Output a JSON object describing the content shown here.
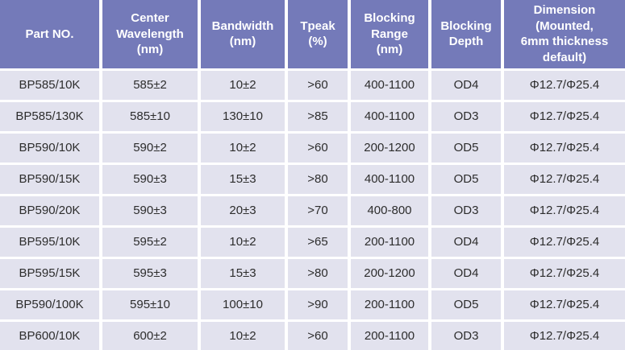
{
  "colors": {
    "header_bg": "#747AB9",
    "header_text": "#FFFFFF",
    "row_bg": "#E2E2EE",
    "grid": "#FFFFFF",
    "cell_text": "#2D2D2D"
  },
  "table": {
    "columns": [
      "Part NO.",
      "Center\nWavelength\n(nm)",
      "Bandwidth\n(nm)",
      "Tpeak\n(%)",
      "Blocking\nRange\n(nm)",
      "Blocking\nDepth",
      "Dimension\n(Mounted,\n6mm thickness\ndefault)"
    ],
    "rows": [
      [
        "BP585/10K",
        "585±2",
        "10±2",
        ">60",
        "400-1100",
        "OD4",
        "Φ12.7/Φ25.4"
      ],
      [
        "BP585/130K",
        "585±10",
        "130±10",
        ">85",
        "400-1100",
        "OD3",
        "Φ12.7/Φ25.4"
      ],
      [
        "BP590/10K",
        "590±2",
        "10±2",
        ">60",
        "200-1200",
        "OD5",
        "Φ12.7/Φ25.4"
      ],
      [
        "BP590/15K",
        "590±3",
        "15±3",
        ">80",
        "400-1100",
        "OD5",
        "Φ12.7/Φ25.4"
      ],
      [
        "BP590/20K",
        "590±3",
        "20±3",
        ">70",
        "400-800",
        "OD3",
        "Φ12.7/Φ25.4"
      ],
      [
        "BP595/10K",
        "595±2",
        "10±2",
        ">65",
        "200-1100",
        "OD4",
        "Φ12.7/Φ25.4"
      ],
      [
        "BP595/15K",
        "595±3",
        "15±3",
        ">80",
        "200-1200",
        "OD4",
        "Φ12.7/Φ25.4"
      ],
      [
        "BP590/100K",
        "595±10",
        "100±10",
        ">90",
        "200-1100",
        "OD5",
        "Φ12.7/Φ25.4"
      ],
      [
        "BP600/10K",
        "600±2",
        "10±2",
        ">60",
        "200-1100",
        "OD3",
        "Φ12.7/Φ25.4"
      ]
    ]
  }
}
